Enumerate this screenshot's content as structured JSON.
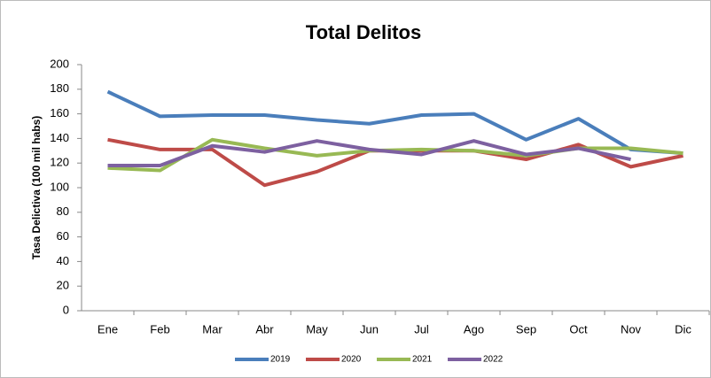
{
  "chart_data": {
    "type": "line",
    "title": "Total Delitos",
    "y_label": "Tasa Delictiva (100 mil  habs)",
    "categories": [
      "Ene",
      "Feb",
      "Mar",
      "Abr",
      "May",
      "Jun",
      "Jul",
      "Ago",
      "Sep",
      "Oct",
      "Nov",
      "Dic"
    ],
    "series": [
      {
        "name": "2019",
        "color": "#4a7ebb",
        "values": [
          178,
          158,
          159,
          159,
          155,
          152,
          159,
          160,
          139,
          156,
          131,
          128
        ]
      },
      {
        "name": "2020",
        "color": "#be4b48",
        "values": [
          139,
          131,
          131,
          102,
          113,
          130,
          130,
          130,
          123,
          135,
          117,
          126
        ]
      },
      {
        "name": "2021",
        "color": "#98b954",
        "values": [
          116,
          114,
          139,
          132,
          126,
          130,
          131,
          130,
          126,
          132,
          132,
          128
        ]
      },
      {
        "name": "2022",
        "color": "#7d60a0",
        "values": [
          118,
          118,
          134,
          129,
          138,
          131,
          127,
          138,
          127,
          132,
          123,
          null
        ]
      }
    ],
    "ylim": [
      0,
      200
    ],
    "yticks": [
      0,
      20,
      40,
      60,
      80,
      100,
      120,
      140,
      160,
      180,
      200
    ],
    "legend": "bottom"
  }
}
